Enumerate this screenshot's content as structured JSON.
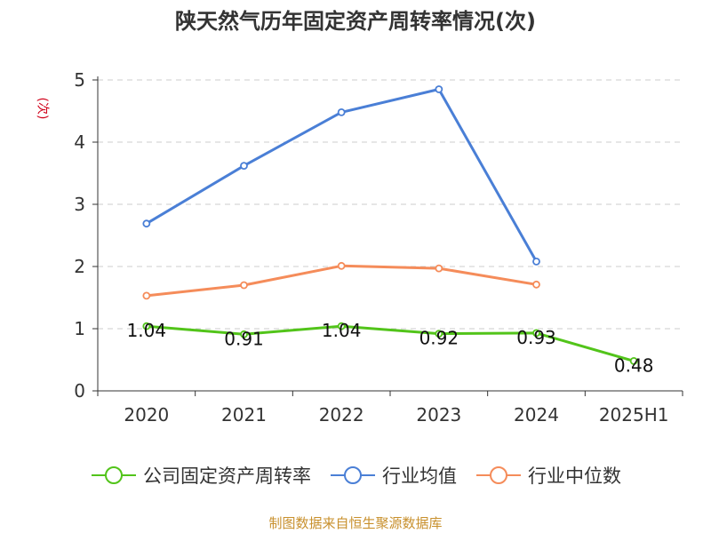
{
  "chart_data": {
    "type": "line",
    "title": "陕天然气历年固定资产周转率情况(次)",
    "ylabel": "(次)",
    "categories": [
      "2020",
      "2021",
      "2022",
      "2023",
      "2024",
      "2025H1"
    ],
    "ylim": [
      0,
      5
    ],
    "yticks": [
      0,
      1,
      2,
      3,
      4,
      5
    ],
    "grid": true,
    "legend_position": "bottom",
    "series": [
      {
        "name": "公司固定资产周转率",
        "color": "#52c41a",
        "values": [
          1.04,
          0.91,
          1.04,
          0.92,
          0.93,
          0.48
        ],
        "labels": [
          "1.04",
          "0.91",
          "1.04",
          "0.92",
          "0.93",
          "0.48"
        ]
      },
      {
        "name": "行业均值",
        "color": "#4a7fd6",
        "values": [
          2.69,
          3.62,
          4.48,
          4.85,
          2.08,
          null
        ]
      },
      {
        "name": "行业中位数",
        "color": "#f58c5a",
        "values": [
          1.53,
          1.7,
          2.01,
          1.97,
          1.71,
          null
        ]
      }
    ]
  },
  "source": "制图数据来自恒生聚源数据库"
}
